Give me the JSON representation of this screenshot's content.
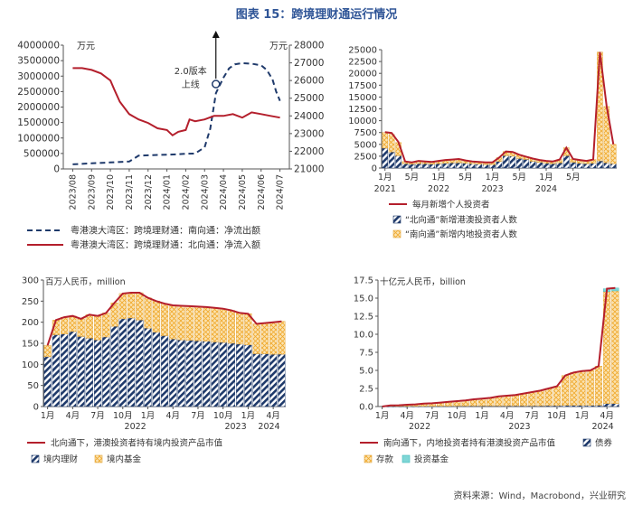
{
  "title": "图表 15：跨境理财通运行情况",
  "source": "资料来源：Wind，Macrobond，兴业研究",
  "chart_data": [
    {
      "type": "line",
      "id": "c1",
      "left_unit": "万元",
      "right_unit": "万元",
      "left_ylim": [
        0,
        4000000
      ],
      "left_ticks": [
        0,
        500000,
        1000000,
        1500000,
        2000000,
        2500000,
        3000000,
        3500000,
        4000000
      ],
      "right_ylim": [
        21000,
        28000
      ],
      "right_ticks": [
        21000,
        22000,
        23000,
        24000,
        25000,
        26000,
        27000,
        28000
      ],
      "categories": [
        "2023/08",
        "2023/09",
        "2023/10",
        "2023/11",
        "2023/12",
        "2024/01",
        "2024/02",
        "2024/03",
        "2024/04",
        "2024/05",
        "2024/06",
        "2024/07"
      ],
      "annotation": {
        "line1": "2.0版本",
        "line2": "上线",
        "x_month": 7.6,
        "right_value": 25800
      },
      "series": [
        {
          "name": "粤港澳大湾区：跨境理财通：南向通：净流出额",
          "axis": "left",
          "style": "dashed",
          "color": "#1f3a6b",
          "x": [
            0,
            1,
            2,
            3,
            3.5,
            4,
            5,
            5.5,
            6,
            6.5,
            7,
            7.3,
            7.6,
            8,
            8.3,
            8.6,
            9,
            9.5,
            10,
            10.3,
            10.6,
            10.8,
            11
          ],
          "values": [
            150000,
            180000,
            210000,
            240000,
            430000,
            440000,
            460000,
            470000,
            490000,
            500000,
            700000,
            1300000,
            2450000,
            2950000,
            3250000,
            3380000,
            3420000,
            3400000,
            3350000,
            3200000,
            2900000,
            2500000,
            2200000
          ]
        },
        {
          "name": "粤港澳大湾区：跨境理财通：北向通：净流入额",
          "axis": "right",
          "style": "solid",
          "color": "#b41f2c",
          "x": [
            0,
            0.5,
            1,
            1.5,
            2,
            2.2,
            2.5,
            3,
            3.5,
            4,
            4.5,
            5,
            5.3,
            5.6,
            6,
            6.2,
            6.5,
            7,
            7.5,
            8,
            8.5,
            9,
            9.5,
            10,
            10.5,
            11
          ],
          "values": [
            26700,
            26700,
            26600,
            26400,
            26000,
            25500,
            24800,
            24100,
            23800,
            23600,
            23300,
            23200,
            22900,
            23100,
            23200,
            23800,
            23700,
            23800,
            24000,
            24000,
            24100,
            23900,
            24200,
            24100,
            24000,
            23900
          ]
        }
      ]
    },
    {
      "type": "bar",
      "id": "c2",
      "ylim": [
        0,
        25000
      ],
      "yticks": [
        0,
        2500,
        5000,
        7500,
        10000,
        12500,
        15000,
        17500,
        20000,
        22500,
        25000
      ],
      "month_ticks": [
        {
          "i": 0,
          "label": "1月",
          "year": "2021"
        },
        {
          "i": 4,
          "label": "5月",
          "year": ""
        },
        {
          "i": 8,
          "label": "1月",
          "year": "2022"
        },
        {
          "i": 12,
          "label": "5月",
          "year": ""
        },
        {
          "i": 16,
          "label": "1月",
          "year": "2023"
        },
        {
          "i": 20,
          "label": "5月",
          "year": ""
        },
        {
          "i": 24,
          "label": "1月",
          "year": "2024"
        },
        {
          "i": 28,
          "label": "5月",
          "year": ""
        }
      ],
      "series": [
        {
          "name": "每月新增个人投资者",
          "kind": "line",
          "color": "#b41f2c",
          "values": [
            7600,
            7400,
            5500,
            1400,
            1200,
            1500,
            1400,
            1300,
            1500,
            1700,
            1800,
            1900,
            1600,
            1400,
            1300,
            1200,
            1200,
            2200,
            3500,
            3400,
            2800,
            2400,
            2000,
            1700,
            1500,
            1400,
            1800,
            4300,
            1900,
            1700,
            1500,
            1800,
            24500,
            13000,
            5000
          ]
        },
        {
          "name": "“北向通”新增港澳投资者人数",
          "kind": "bar",
          "fill": "hatch-navy",
          "values": [
            4200,
            3400,
            2600,
            900,
            800,
            900,
            900,
            800,
            900,
            1000,
            1100,
            1100,
            1000,
            900,
            800,
            700,
            700,
            1400,
            2600,
            2500,
            2000,
            1800,
            1400,
            1200,
            1000,
            900,
            1100,
            2600,
            1200,
            1000,
            900,
            1000,
            1500,
            1100,
            900
          ]
        },
        {
          "name": "“南向通”新增内地投资者人数",
          "kind": "bar",
          "fill": "hatch-gold",
          "values": [
            3300,
            3700,
            2800,
            500,
            400,
            600,
            500,
            500,
            600,
            700,
            700,
            800,
            600,
            500,
            500,
            500,
            500,
            800,
            900,
            900,
            800,
            600,
            600,
            500,
            500,
            500,
            700,
            1700,
            700,
            700,
            600,
            800,
            23000,
            11900,
            4100
          ]
        }
      ]
    },
    {
      "type": "bar",
      "id": "c3",
      "unit": "百万人民币，million",
      "ylim": [
        0,
        300
      ],
      "yticks": [
        0,
        50,
        100,
        150,
        200,
        250,
        300
      ],
      "month_ticks": [
        {
          "i": 0,
          "label": "1月"
        },
        {
          "i": 3,
          "label": "4月"
        },
        {
          "i": 6,
          "label": "7月"
        },
        {
          "i": 9,
          "label": "10月"
        },
        {
          "i": 12,
          "label": "1月"
        },
        {
          "i": 15,
          "label": "4月"
        },
        {
          "i": 18,
          "label": "7月"
        },
        {
          "i": 21,
          "label": "10月"
        },
        {
          "i": 24,
          "label": "1月"
        },
        {
          "i": 27,
          "label": "4月"
        }
      ],
      "years": [
        {
          "i": 10.5,
          "label": "2022"
        },
        {
          "i": 22.5,
          "label": "2023"
        },
        {
          "i": 26.5,
          "label": "2024"
        }
      ],
      "series": [
        {
          "name": "北向通下，港澳投资者持有境内投资产品市值",
          "kind": "line",
          "color": "#b41f2c",
          "values": [
            145,
            205,
            212,
            215,
            208,
            218,
            215,
            222,
            246,
            268,
            270,
            270,
            258,
            250,
            244,
            240,
            239,
            238,
            237,
            236,
            234,
            232,
            228,
            222,
            220,
            196,
            198,
            200,
            202
          ]
        },
        {
          "name": "境内理财",
          "kind": "bar",
          "fill": "hatch-navy",
          "values": [
            118,
            170,
            172,
            178,
            166,
            162,
            158,
            165,
            190,
            208,
            210,
            205,
            186,
            176,
            168,
            160,
            158,
            157,
            156,
            155,
            153,
            152,
            150,
            148,
            146,
            125,
            125,
            124,
            124
          ]
        },
        {
          "name": "境内基金",
          "kind": "bar",
          "fill": "hatch-gold",
          "values": [
            27,
            35,
            40,
            37,
            42,
            56,
            57,
            57,
            56,
            60,
            60,
            65,
            72,
            74,
            76,
            80,
            81,
            81,
            81,
            81,
            81,
            80,
            78,
            74,
            74,
            71,
            73,
            76,
            78
          ]
        }
      ]
    },
    {
      "type": "bar",
      "id": "c4",
      "unit": "十亿元人民币，billion",
      "ylim": [
        0,
        17.5
      ],
      "yticks": [
        0,
        2.5,
        5,
        7.5,
        10,
        12.5,
        15,
        17.5
      ],
      "month_ticks": [
        {
          "i": 0,
          "label": "1月"
        },
        {
          "i": 3,
          "label": "4月"
        },
        {
          "i": 6,
          "label": "7月"
        },
        {
          "i": 9,
          "label": "10月"
        },
        {
          "i": 12,
          "label": "1月"
        },
        {
          "i": 15,
          "label": "4月"
        },
        {
          "i": 18,
          "label": "7月"
        },
        {
          "i": 21,
          "label": "10月"
        },
        {
          "i": 24,
          "label": "1月"
        },
        {
          "i": 27,
          "label": "4月"
        }
      ],
      "years": [
        {
          "i": 4.5,
          "label": "2022"
        },
        {
          "i": 16.5,
          "label": "2023"
        },
        {
          "i": 26.5,
          "label": "2024"
        }
      ],
      "series": [
        {
          "name": "南向通下，内地投资者持有港澳投资产品市值",
          "kind": "line",
          "color": "#b41f2c",
          "values": [
            0,
            0.15,
            0.18,
            0.25,
            0.3,
            0.4,
            0.45,
            0.55,
            0.65,
            0.75,
            0.85,
            1.0,
            1.1,
            1.2,
            1.4,
            1.5,
            1.6,
            1.8,
            2.0,
            2.2,
            2.5,
            2.8,
            4.3,
            4.7,
            4.9,
            5.0,
            5.6,
            16.3,
            16.4
          ]
        },
        {
          "name": "债券",
          "kind": "bar",
          "fill": "hatch-navy",
          "values": [
            0,
            0.02,
            0.02,
            0.03,
            0.03,
            0.04,
            0.04,
            0.05,
            0.05,
            0.06,
            0.06,
            0.07,
            0.07,
            0.08,
            0.08,
            0.09,
            0.09,
            0.1,
            0.1,
            0.1,
            0.12,
            0.12,
            0.15,
            0.15,
            0.15,
            0.15,
            0.18,
            0.4,
            0.4
          ]
        },
        {
          "name": "存款",
          "kind": "bar",
          "fill": "hatch-gold",
          "values": [
            0,
            0.13,
            0.16,
            0.22,
            0.27,
            0.36,
            0.41,
            0.5,
            0.6,
            0.69,
            0.79,
            0.93,
            1.03,
            1.12,
            1.32,
            1.41,
            1.51,
            1.7,
            1.9,
            2.1,
            2.38,
            2.68,
            4.15,
            4.55,
            4.75,
            4.85,
            5.42,
            15.5,
            15.6
          ]
        },
        {
          "name": "投资基金",
          "kind": "bar",
          "fill": "teal",
          "values": [
            0,
            0,
            0,
            0,
            0,
            0,
            0,
            0,
            0,
            0,
            0,
            0,
            0,
            0,
            0,
            0,
            0,
            0,
            0,
            0,
            0,
            0,
            0,
            0,
            0,
            0,
            0,
            0.4,
            0.4
          ]
        }
      ]
    }
  ]
}
